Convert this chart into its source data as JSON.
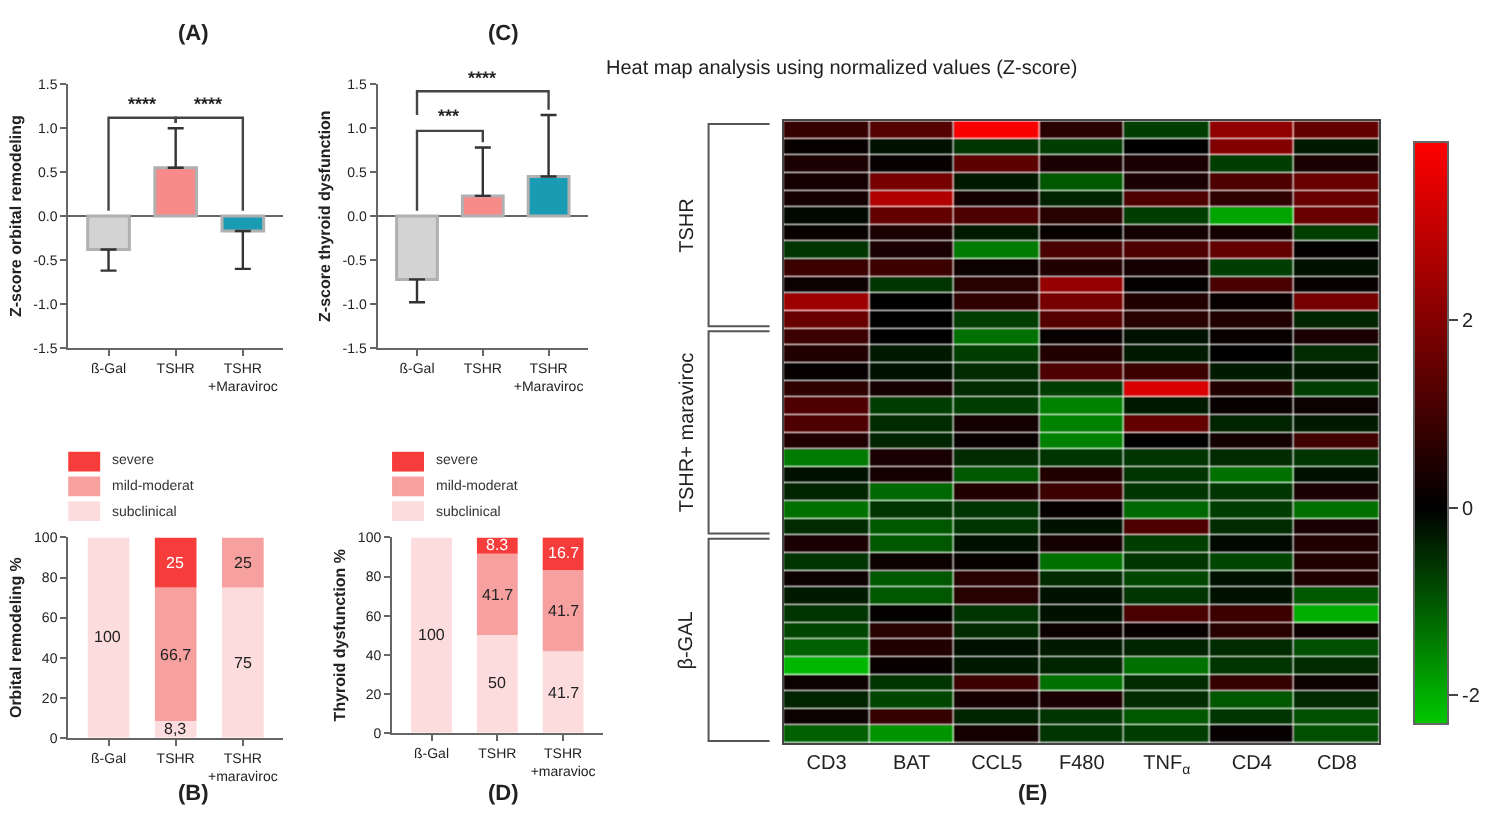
{
  "chart_data": [
    {
      "type": "bar",
      "title": "(A)",
      "ylabel": "Z-score orbital remodeling",
      "categories": [
        "ß-Gal",
        "TSHR",
        "TSHR\n+Maraviroc"
      ],
      "values": [
        -0.38,
        0.55,
        -0.17
      ],
      "colors": [
        "#d3d3d3",
        "#f88a8a",
        "#1a9bb4"
      ],
      "errors": [
        [
          -0.62,
          -0.38
        ],
        [
          0.55,
          1.0
        ],
        [
          -0.6,
          -0.17
        ]
      ],
      "ylim": [
        -1.5,
        1.5
      ],
      "yticks": [
        {
          "value": -1.5,
          "label": "-1.5"
        },
        {
          "value": -1,
          "label": "-1.0"
        },
        {
          "value": -0.5,
          "label": "-0.5"
        },
        {
          "value": 0,
          "label": "0.0"
        },
        {
          "value": 0.5,
          "label": "0.5"
        },
        {
          "value": 1,
          "label": "1.0"
        },
        {
          "value": 1.5,
          "label": "1.5"
        }
      ],
      "annotations": [
        "****",
        "****"
      ]
    },
    {
      "type": "bar",
      "stacked": true,
      "title": "(B)",
      "ylabel": "Orbital remodeling %",
      "categories": [
        "ß-Gal",
        "TSHR",
        "TSHR\n+maraviroc"
      ],
      "series": [
        {
          "name": "subclinical",
          "color": "#fcdcdc",
          "values": [
            100,
            8.3,
            75
          ],
          "value_labels": [
            "100",
            "8,3",
            "75"
          ]
        },
        {
          "name": "mild-moderat",
          "color": "#f7a0a0",
          "values": [
            0,
            66.7,
            25
          ],
          "value_labels": [
            null,
            "66,7",
            "25"
          ]
        },
        {
          "name": "severe",
          "color": "#f73c3c",
          "values": [
            0,
            25,
            0
          ],
          "value_labels": [
            null,
            "25",
            null
          ]
        }
      ],
      "ylim": [
        0,
        100
      ],
      "yticks": [
        0,
        20,
        40,
        60,
        80,
        100
      ],
      "legend": "top left"
    },
    {
      "type": "bar",
      "title": "(C)",
      "ylabel": "Z-score thyroid dysfunction",
      "categories": [
        "ß-Gal",
        "TSHR",
        "TSHR\n+Maraviroc"
      ],
      "values": [
        -0.72,
        0.23,
        0.45
      ],
      "colors": [
        "#d3d3d3",
        "#f88a8a",
        "#1a9bb4"
      ],
      "errors": [
        [
          -0.98,
          -0.72
        ],
        [
          0.23,
          0.78
        ],
        [
          0.45,
          1.15
        ]
      ],
      "ylim": [
        -1.5,
        1.5
      ],
      "yticks": [
        {
          "value": -1.5,
          "label": "-1.5"
        },
        {
          "value": -1,
          "label": "-1.0"
        },
        {
          "value": -0.5,
          "label": "-0.5"
        },
        {
          "value": 0,
          "label": "0.0"
        },
        {
          "value": 0.5,
          "label": "0.5"
        },
        {
          "value": 1,
          "label": "1.0"
        },
        {
          "value": 1.5,
          "label": "1.5"
        }
      ],
      "annotations": [
        "***",
        "****"
      ]
    },
    {
      "type": "bar",
      "stacked": true,
      "title": "(D)",
      "ylabel": "Thyroid dysfunction %",
      "categories": [
        "ß-Gal",
        "TSHR",
        "TSHR\n+maravioc"
      ],
      "series": [
        {
          "name": "subclinical",
          "color": "#fcdcdc",
          "values": [
            100,
            50,
            41.7
          ],
          "value_labels": [
            "100",
            "50",
            "41.7"
          ]
        },
        {
          "name": "mild-moderat",
          "color": "#f7a0a0",
          "values": [
            0,
            41.7,
            41.7
          ],
          "value_labels": [
            null,
            "41.7",
            "41.7"
          ]
        },
        {
          "name": "severe",
          "color": "#f73c3c",
          "values": [
            0,
            8.3,
            16.7
          ],
          "value_labels": [
            null,
            "8.3",
            "16.7"
          ]
        }
      ],
      "ylim": [
        0,
        100
      ],
      "yticks": [
        0,
        20,
        40,
        60,
        80,
        100
      ],
      "legend": "top left"
    },
    {
      "type": "heatmap",
      "title": "Heat map analysis using normalized values (Z-score)",
      "subtitle": "(E)",
      "categories": [
        "CD3",
        "BAT",
        "CCL5",
        "F480",
        "TNF$_{α}$",
        "CD4",
        "CD8"
      ],
      "y_categories": [
        null,
        null,
        null,
        null,
        null,
        null,
        null,
        null,
        null,
        null,
        null,
        null,
        null,
        null,
        null,
        null,
        null,
        null,
        null,
        null,
        null,
        null,
        null,
        null,
        null,
        null,
        null,
        null,
        null,
        null,
        null,
        null,
        null,
        null,
        null,
        null
      ],
      "clim": [
        -2.3,
        3.9
      ],
      "cticks": [
        -2,
        0,
        2
      ],
      "annotations": [
        "TSHR",
        "TSHR+ maraviroc",
        "β-GAL"
      ],
      "cells": [
        [
          0.8,
          1.3,
          3.8,
          0.6,
          -0.7,
          2.2,
          1.5
        ],
        [
          0.1,
          -0.2,
          -0.6,
          -0.7,
          0,
          2.0,
          -0.3
        ],
        [
          0.4,
          0.1,
          1.4,
          0.4,
          0.4,
          -0.7,
          0.4
        ],
        [
          0.3,
          1.8,
          -0.3,
          -1.0,
          0.4,
          1.2,
          1.6
        ],
        [
          0.3,
          2.7,
          0.3,
          -0.4,
          1.2,
          0.7,
          1.6
        ],
        [
          -0.1,
          1.5,
          1.2,
          0.6,
          -0.7,
          -1.9,
          1.6
        ],
        [
          0.1,
          0.4,
          -0.3,
          0.1,
          0.3,
          0.3,
          -0.7
        ],
        [
          -0.6,
          0.4,
          -1.4,
          1.1,
          1.2,
          1.5,
          0.05
        ],
        [
          0.9,
          0.9,
          0.2,
          0.5,
          0.3,
          -0.7,
          -0.2
        ],
        [
          0.2,
          -0.6,
          0.6,
          2.3,
          0.05,
          1.1,
          0.1
        ],
        [
          2.4,
          0,
          0.7,
          1.8,
          0.5,
          0.1,
          1.8
        ],
        [
          1.6,
          0,
          -0.7,
          1.3,
          0.6,
          0.5,
          -0.4
        ],
        [
          0.9,
          0,
          -1.3,
          0.1,
          -0.2,
          0.1,
          0.4
        ],
        [
          0.5,
          -0.3,
          -0.7,
          0.5,
          -0.3,
          0,
          -0.5
        ],
        [
          0.1,
          -0.2,
          -0.5,
          1.2,
          0.9,
          -0.3,
          -0.3
        ],
        [
          0.7,
          0.3,
          -0.5,
          -0.7,
          3.3,
          0.5,
          -0.7
        ],
        [
          1.2,
          -0.7,
          -0.7,
          -1.5,
          -0.3,
          0.1,
          0.2
        ],
        [
          1.2,
          -0.5,
          0.3,
          -1.5,
          1.5,
          -0.4,
          -0.3
        ],
        [
          0.5,
          -0.4,
          0.1,
          -1.5,
          0,
          0.3,
          1.0
        ],
        [
          -1.4,
          0.4,
          -0.5,
          -0.6,
          -0.6,
          -0.5,
          -0.6
        ],
        [
          -0.2,
          0.3,
          -1.0,
          0.5,
          -0.6,
          -1.3,
          -0.2
        ],
        [
          -0.4,
          -1.2,
          0.5,
          0.9,
          -0.6,
          -0.6,
          0.4
        ],
        [
          -1.3,
          -0.6,
          -0.6,
          0.1,
          -1.2,
          -0.7,
          -1.3
        ],
        [
          -0.5,
          -1.0,
          -0.6,
          -0.2,
          1.2,
          -0.5,
          0.4
        ],
        [
          0.4,
          -1.0,
          -0.2,
          0.3,
          -0.7,
          -0.1,
          0.5
        ],
        [
          -0.6,
          0.2,
          0.1,
          -1.3,
          -0.6,
          -0.8,
          0.5
        ],
        [
          0.2,
          -1.0,
          0.6,
          -0.5,
          -0.8,
          -0.2,
          0.5
        ],
        [
          -0.3,
          -1.0,
          0.6,
          -0.2,
          -0.6,
          -0.2,
          -1.0
        ],
        [
          -0.6,
          0.05,
          -0.6,
          -0.2,
          1.1,
          0.9,
          -2.0
        ],
        [
          -0.8,
          0.6,
          -0.5,
          0.2,
          0.1,
          0.6,
          0.2
        ],
        [
          -1.1,
          0.5,
          -0.2,
          -0.3,
          -0.4,
          -0.5,
          -0.9
        ],
        [
          -2.1,
          0.1,
          -0.3,
          -0.4,
          -1.3,
          -0.6,
          -0.5
        ],
        [
          0.2,
          -0.6,
          0.9,
          -1.3,
          -0.5,
          0.8,
          0.2
        ],
        [
          -0.4,
          -0.8,
          0.3,
          0.4,
          -0.5,
          -1.0,
          -0.5
        ],
        [
          0.2,
          0.8,
          -0.4,
          -0.6,
          -1.0,
          -0.6,
          -0.9
        ],
        [
          -1.1,
          -1.7,
          0.3,
          -0.6,
          -0.7,
          0.1,
          -0.9
        ]
      ]
    }
  ]
}
